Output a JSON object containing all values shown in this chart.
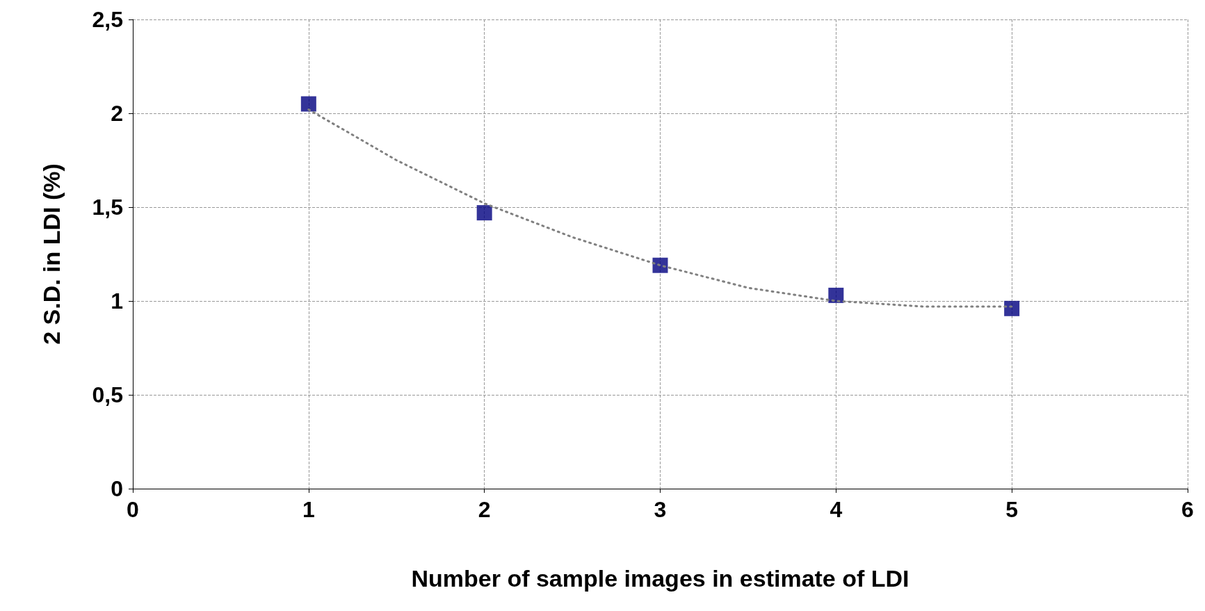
{
  "chart_data": {
    "type": "scatter",
    "xlabel": "Number of sample images in estimate of LDI",
    "ylabel": "2 S.D. in LDI (%)",
    "x": [
      1,
      2,
      3,
      4,
      5
    ],
    "series": [
      {
        "color": "#000080",
        "marker": "square",
        "values": [
          2.05,
          1.47,
          1.19,
          1.03,
          0.96
        ]
      },
      {
        "type": "line",
        "color": "#808080",
        "line_style": "dotted",
        "marker": "none",
        "x": [
          1,
          1.5,
          2,
          2.5,
          3,
          3.5,
          4,
          4.5,
          5
        ],
        "values": [
          2.02,
          1.75,
          1.52,
          1.34,
          1.19,
          1.07,
          1.0,
          0.97,
          0.97
        ]
      }
    ],
    "xlim": [
      0,
      6
    ],
    "xticks": [
      0,
      1,
      2,
      3,
      4,
      5,
      6
    ],
    "ylim": [
      0,
      2.5
    ],
    "yticks": [
      0,
      {
        "value": 0.5,
        "label": "0,5"
      },
      1,
      {
        "value": 1.5,
        "label": "1,5"
      },
      2,
      {
        "value": 2.5,
        "label": "2,5"
      }
    ],
    "grid": true
  }
}
